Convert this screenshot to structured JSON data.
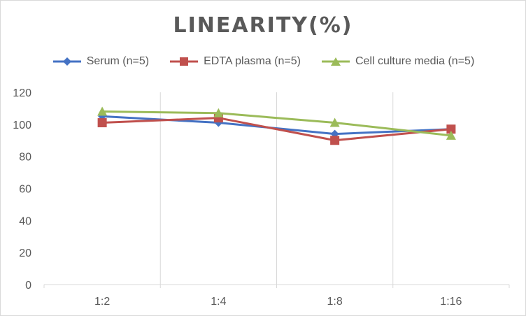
{
  "chart_data": {
    "type": "line",
    "title": "LINEARITY(%)",
    "categories": [
      "1:2",
      "1:4",
      "1:8",
      "1:16"
    ],
    "ylim": [
      0,
      120
    ],
    "yticks": [
      0,
      20,
      40,
      60,
      80,
      100,
      120
    ],
    "grid": "vertical category gridlines",
    "legend_position": "top",
    "series": [
      {
        "name": "Serum (n=5)",
        "values": [
          105,
          101,
          94,
          97
        ],
        "color": "#4472C4",
        "marker": "diamond"
      },
      {
        "name": "EDTA plasma (n=5)",
        "values": [
          101,
          104,
          90,
          97
        ],
        "color": "#C0504D",
        "marker": "square"
      },
      {
        "name": "Cell culture media (n=5)",
        "values": [
          108,
          107,
          101,
          93
        ],
        "color": "#9BBB59",
        "marker": "triangle"
      }
    ]
  }
}
